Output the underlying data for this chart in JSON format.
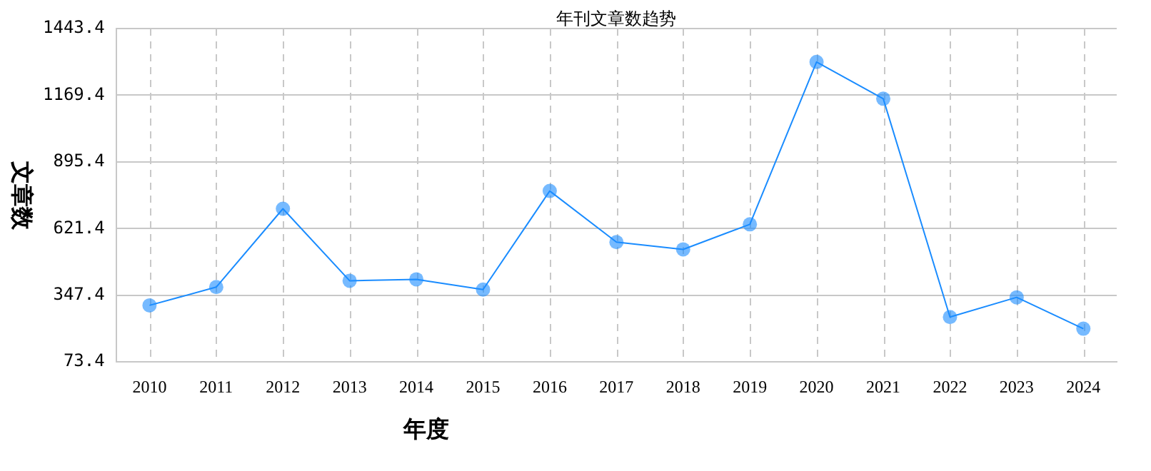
{
  "chart_data": {
    "type": "line",
    "title": "年刊文章数趋势",
    "xlabel": "年度",
    "ylabel": "文章数",
    "categories": [
      "2010",
      "2011",
      "2012",
      "2013",
      "2014",
      "2015",
      "2016",
      "2017",
      "2018",
      "2019",
      "2020",
      "2021",
      "2022",
      "2023",
      "2024"
    ],
    "series": [
      {
        "color": "#1a8cff",
        "values": [
          306,
          381,
          703,
          407,
          413,
          371,
          776,
          566,
          536,
          639,
          1306,
          1155,
          258,
          339,
          210
        ]
      }
    ],
    "ylim": [
      73.4,
      1443.4
    ],
    "yticks": [
      73.4,
      347.4,
      621.4,
      895.4,
      1169.4,
      1443.4
    ],
    "grid": true,
    "marker": "circle",
    "line_style": "solid",
    "legend": false
  }
}
